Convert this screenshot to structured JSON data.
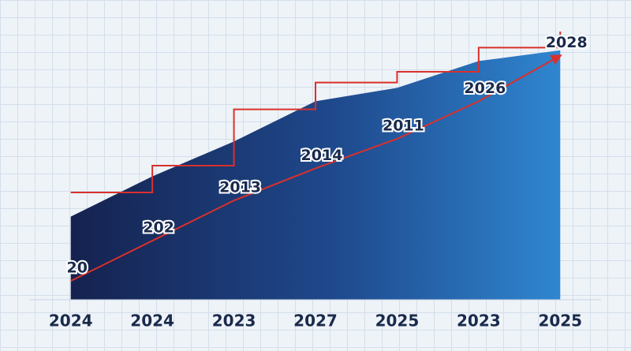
{
  "chart_data": {
    "type": "area",
    "categories": [
      "2024",
      "2024",
      "2023",
      "2027",
      "2025",
      "2023",
      "2025"
    ],
    "series": [
      {
        "kind": "area",
        "color": "#2f86d0",
        "values": [
          31,
          46,
          59,
          74,
          79,
          89,
          93
        ]
      },
      {
        "kind": "outline",
        "color": "#d9302c",
        "values": [
          40,
          50,
          71,
          81,
          85,
          94,
          100
        ]
      },
      {
        "kind": "arrow",
        "color": "#d9302c",
        "values": [
          7,
          22,
          37,
          49,
          60,
          74,
          91
        ],
        "annotations": [
          "20",
          "202",
          "2013",
          "2014",
          "2011",
          "2026",
          "2028"
        ]
      }
    ],
    "ylim": [
      0,
      100
    ]
  }
}
